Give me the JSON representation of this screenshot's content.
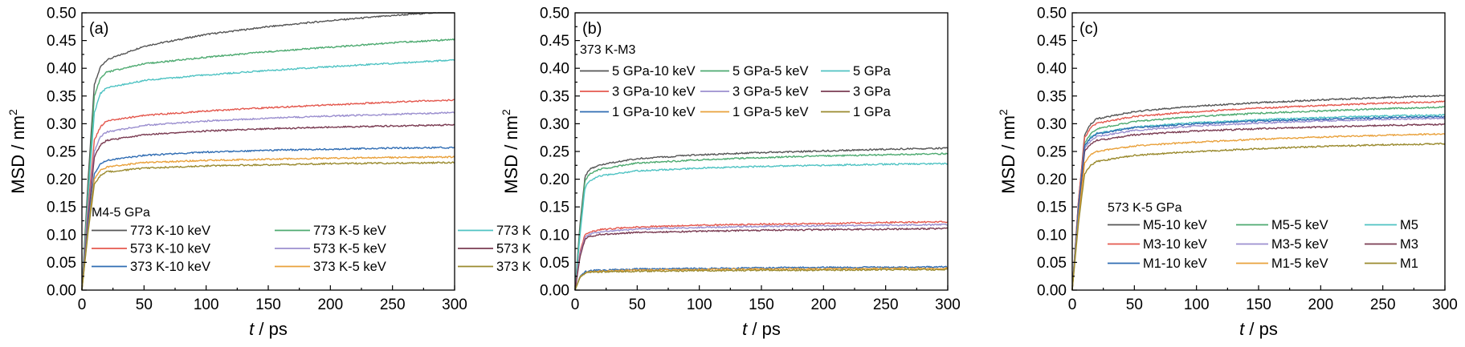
{
  "chart_data": [
    {
      "type": "line",
      "panel_label": "(a)",
      "xlabel_italic": "t",
      "xlabel_rest": " / ps",
      "ylabel": "MSD / nm",
      "ylabel_sup": "2",
      "xlim": [
        0,
        300
      ],
      "ylim": [
        0,
        0.5
      ],
      "xticks": [
        0,
        50,
        100,
        150,
        200,
        250,
        300
      ],
      "yticks": [
        0.0,
        0.05,
        0.1,
        0.15,
        0.2,
        0.25,
        0.3,
        0.35,
        0.4,
        0.45,
        0.5
      ],
      "legend_title": "M4-5 GPa",
      "legend_placement": "bottom-left",
      "legend_columns": 3,
      "series": [
        {
          "name": "773 K-10 keV",
          "color": "#555555",
          "x": [
            0,
            5,
            10,
            15,
            20,
            50,
            100,
            150,
            200,
            250,
            300
          ],
          "y": [
            0,
            0.2,
            0.37,
            0.403,
            0.415,
            0.44,
            0.461,
            0.475,
            0.486,
            0.495,
            0.503
          ]
        },
        {
          "name": "773 K-5 keV",
          "color": "#4daa70",
          "x": [
            0,
            5,
            10,
            15,
            20,
            50,
            100,
            150,
            200,
            250,
            300
          ],
          "y": [
            0,
            0.18,
            0.35,
            0.383,
            0.393,
            0.408,
            0.42,
            0.43,
            0.438,
            0.446,
            0.452
          ]
        },
        {
          "name": "773 K",
          "color": "#4fc3c3",
          "x": [
            0,
            5,
            10,
            15,
            20,
            50,
            100,
            150,
            200,
            250,
            300
          ],
          "y": [
            0,
            0.17,
            0.32,
            0.355,
            0.365,
            0.378,
            0.388,
            0.396,
            0.403,
            0.409,
            0.415
          ]
        },
        {
          "name": "573 K-10 keV",
          "color": "#e4584e",
          "x": [
            0,
            5,
            10,
            15,
            20,
            50,
            100,
            150,
            200,
            250,
            300
          ],
          "y": [
            0,
            0.15,
            0.27,
            0.295,
            0.305,
            0.315,
            0.323,
            0.329,
            0.334,
            0.339,
            0.343
          ]
        },
        {
          "name": "573 K-5 keV",
          "color": "#9b8fcf",
          "x": [
            0,
            5,
            10,
            15,
            20,
            50,
            100,
            150,
            200,
            250,
            300
          ],
          "y": [
            0,
            0.14,
            0.25,
            0.277,
            0.285,
            0.297,
            0.305,
            0.31,
            0.314,
            0.317,
            0.32
          ]
        },
        {
          "name": "573 K",
          "color": "#7a3b52",
          "x": [
            0,
            5,
            10,
            15,
            20,
            50,
            100,
            150,
            200,
            250,
            300
          ],
          "y": [
            0,
            0.13,
            0.24,
            0.262,
            0.27,
            0.28,
            0.287,
            0.291,
            0.294,
            0.296,
            0.298
          ]
        },
        {
          "name": "373 K-10 keV",
          "color": "#2f6cb3",
          "x": [
            0,
            5,
            10,
            15,
            20,
            50,
            100,
            150,
            200,
            250,
            300
          ],
          "y": [
            0,
            0.12,
            0.21,
            0.228,
            0.234,
            0.243,
            0.249,
            0.252,
            0.254,
            0.256,
            0.257
          ]
        },
        {
          "name": "373 K-5 keV",
          "color": "#e9a13b",
          "x": [
            0,
            5,
            10,
            15,
            20,
            50,
            100,
            150,
            200,
            250,
            300
          ],
          "y": [
            0,
            0.11,
            0.2,
            0.216,
            0.222,
            0.23,
            0.234,
            0.236,
            0.238,
            0.239,
            0.24
          ]
        },
        {
          "name": "373 K",
          "color": "#9a8a2e",
          "x": [
            0,
            5,
            10,
            15,
            20,
            50,
            100,
            150,
            200,
            250,
            300
          ],
          "y": [
            0,
            0.105,
            0.19,
            0.207,
            0.213,
            0.22,
            0.224,
            0.226,
            0.228,
            0.229,
            0.23
          ]
        }
      ]
    },
    {
      "type": "line",
      "panel_label": "(b)",
      "xlabel_italic": "t",
      "xlabel_rest": " / ps",
      "ylabel": "MSD / nm",
      "ylabel_sup": "2",
      "xlim": [
        0,
        300
      ],
      "ylim": [
        0,
        0.5
      ],
      "xticks": [
        0,
        50,
        100,
        150,
        200,
        250,
        300
      ],
      "yticks": [
        0.0,
        0.05,
        0.1,
        0.15,
        0.2,
        0.25,
        0.3,
        0.35,
        0.4,
        0.45,
        0.5
      ],
      "legend_title": "373 K-M3",
      "legend_placement": "top",
      "legend_columns": 3,
      "series": [
        {
          "name": "5 GPa-10 keV",
          "color": "#555555",
          "x": [
            0,
            4,
            8,
            12,
            20,
            50,
            100,
            150,
            200,
            250,
            300
          ],
          "y": [
            0,
            0.12,
            0.205,
            0.218,
            0.226,
            0.237,
            0.244,
            0.248,
            0.251,
            0.254,
            0.256
          ]
        },
        {
          "name": "5 GPa-5 keV",
          "color": "#4daa70",
          "x": [
            0,
            4,
            8,
            12,
            20,
            50,
            100,
            150,
            200,
            250,
            300
          ],
          "y": [
            0,
            0.11,
            0.198,
            0.21,
            0.218,
            0.229,
            0.235,
            0.239,
            0.242,
            0.244,
            0.246
          ]
        },
        {
          "name": "5 GPa",
          "color": "#4fc3c3",
          "x": [
            0,
            4,
            8,
            12,
            20,
            50,
            100,
            150,
            200,
            250,
            300
          ],
          "y": [
            0,
            0.1,
            0.185,
            0.198,
            0.206,
            0.215,
            0.22,
            0.223,
            0.225,
            0.227,
            0.228
          ]
        },
        {
          "name": "3 GPa-10 keV",
          "color": "#e4584e",
          "x": [
            0,
            4,
            8,
            12,
            20,
            50,
            100,
            150,
            200,
            250,
            300
          ],
          "y": [
            0,
            0.07,
            0.1,
            0.105,
            0.109,
            0.114,
            0.117,
            0.119,
            0.12,
            0.122,
            0.123
          ]
        },
        {
          "name": "3 GPa-5 keV",
          "color": "#9b8fcf",
          "x": [
            0,
            4,
            8,
            12,
            20,
            50,
            100,
            150,
            200,
            250,
            300
          ],
          "y": [
            0,
            0.065,
            0.096,
            0.101,
            0.105,
            0.11,
            0.113,
            0.115,
            0.116,
            0.117,
            0.118
          ]
        },
        {
          "name": "3 GPa",
          "color": "#7a3b52",
          "x": [
            0,
            4,
            8,
            12,
            20,
            50,
            100,
            150,
            200,
            250,
            300
          ],
          "y": [
            0,
            0.06,
            0.092,
            0.097,
            0.1,
            0.104,
            0.106,
            0.108,
            0.109,
            0.11,
            0.111
          ]
        },
        {
          "name": "1 GPa-10 keV",
          "color": "#2f6cb3",
          "x": [
            0,
            4,
            8,
            12,
            20,
            50,
            100,
            150,
            200,
            250,
            300
          ],
          "y": [
            0,
            0.025,
            0.033,
            0.035,
            0.036,
            0.038,
            0.039,
            0.04,
            0.041,
            0.041,
            0.042
          ]
        },
        {
          "name": "1 GPa-5 keV",
          "color": "#e9a13b",
          "x": [
            0,
            4,
            8,
            12,
            20,
            50,
            100,
            150,
            200,
            250,
            300
          ],
          "y": [
            0,
            0.024,
            0.031,
            0.033,
            0.034,
            0.036,
            0.037,
            0.038,
            0.038,
            0.039,
            0.039
          ]
        },
        {
          "name": "1 GPa",
          "color": "#9a8a2e",
          "x": [
            0,
            4,
            8,
            12,
            20,
            50,
            100,
            150,
            200,
            250,
            300
          ],
          "y": [
            0,
            0.023,
            0.03,
            0.032,
            0.033,
            0.034,
            0.035,
            0.036,
            0.036,
            0.037,
            0.037
          ]
        }
      ]
    },
    {
      "type": "line",
      "panel_label": "(c)",
      "xlabel_italic": "t",
      "xlabel_rest": " / ps",
      "ylabel": "MSD / nm",
      "ylabel_sup": "2",
      "xlim": [
        0,
        300
      ],
      "ylim": [
        0,
        0.5
      ],
      "xticks": [
        0,
        50,
        100,
        150,
        200,
        250,
        300
      ],
      "yticks": [
        0.0,
        0.05,
        0.1,
        0.15,
        0.2,
        0.25,
        0.3,
        0.35,
        0.4,
        0.45,
        0.5
      ],
      "legend_title": "573 K-5 GPa",
      "legend_placement": "bottom-left",
      "legend_columns": 3,
      "series": [
        {
          "name": "M5-10 keV",
          "color": "#555555",
          "x": [
            0,
            5,
            10,
            15,
            20,
            50,
            100,
            150,
            200,
            250,
            300
          ],
          "y": [
            0,
            0.16,
            0.28,
            0.3,
            0.309,
            0.322,
            0.332,
            0.338,
            0.343,
            0.347,
            0.351
          ]
        },
        {
          "name": "M5-5 keV",
          "color": "#4daa70",
          "x": [
            0,
            5,
            10,
            15,
            20,
            50,
            100,
            150,
            200,
            250,
            300
          ],
          "y": [
            0,
            0.15,
            0.265,
            0.283,
            0.291,
            0.304,
            0.313,
            0.319,
            0.323,
            0.327,
            0.33
          ]
        },
        {
          "name": "M5",
          "color": "#4fc3c3",
          "x": [
            0,
            5,
            10,
            15,
            20,
            50,
            100,
            150,
            200,
            250,
            300
          ],
          "y": [
            0,
            0.15,
            0.26,
            0.276,
            0.283,
            0.294,
            0.302,
            0.307,
            0.311,
            0.314,
            0.316
          ]
        },
        {
          "name": "M3-10 keV",
          "color": "#e4584e",
          "x": [
            0,
            5,
            10,
            15,
            20,
            50,
            100,
            150,
            200,
            250,
            300
          ],
          "y": [
            0,
            0.16,
            0.275,
            0.293,
            0.301,
            0.313,
            0.322,
            0.328,
            0.333,
            0.337,
            0.34
          ]
        },
        {
          "name": "M3-5 keV",
          "color": "#9b8fcf",
          "x": [
            0,
            5,
            10,
            15,
            20,
            50,
            100,
            150,
            200,
            250,
            300
          ],
          "y": [
            0,
            0.145,
            0.255,
            0.27,
            0.277,
            0.288,
            0.296,
            0.301,
            0.305,
            0.308,
            0.31
          ]
        },
        {
          "name": "M3",
          "color": "#7a3b52",
          "x": [
            0,
            5,
            10,
            15,
            20,
            50,
            100,
            150,
            200,
            250,
            300
          ],
          "y": [
            0,
            0.14,
            0.25,
            0.264,
            0.27,
            0.28,
            0.287,
            0.291,
            0.294,
            0.297,
            0.299
          ]
        },
        {
          "name": "M1-10 keV",
          "color": "#2f6cb3",
          "x": [
            0,
            5,
            10,
            15,
            20,
            50,
            100,
            150,
            200,
            250,
            300
          ],
          "y": [
            0,
            0.15,
            0.26,
            0.275,
            0.282,
            0.293,
            0.3,
            0.305,
            0.308,
            0.311,
            0.313
          ]
        },
        {
          "name": "M1-5 keV",
          "color": "#e9a13b",
          "x": [
            0,
            5,
            10,
            15,
            20,
            50,
            100,
            150,
            200,
            250,
            300
          ],
          "y": [
            0,
            0.13,
            0.23,
            0.244,
            0.25,
            0.26,
            0.267,
            0.272,
            0.276,
            0.279,
            0.282
          ]
        },
        {
          "name": "M1",
          "color": "#9a8a2e",
          "x": [
            0,
            5,
            10,
            15,
            20,
            50,
            100,
            150,
            200,
            250,
            300
          ],
          "y": [
            0,
            0.12,
            0.21,
            0.225,
            0.232,
            0.243,
            0.25,
            0.255,
            0.259,
            0.262,
            0.264
          ]
        }
      ]
    }
  ]
}
